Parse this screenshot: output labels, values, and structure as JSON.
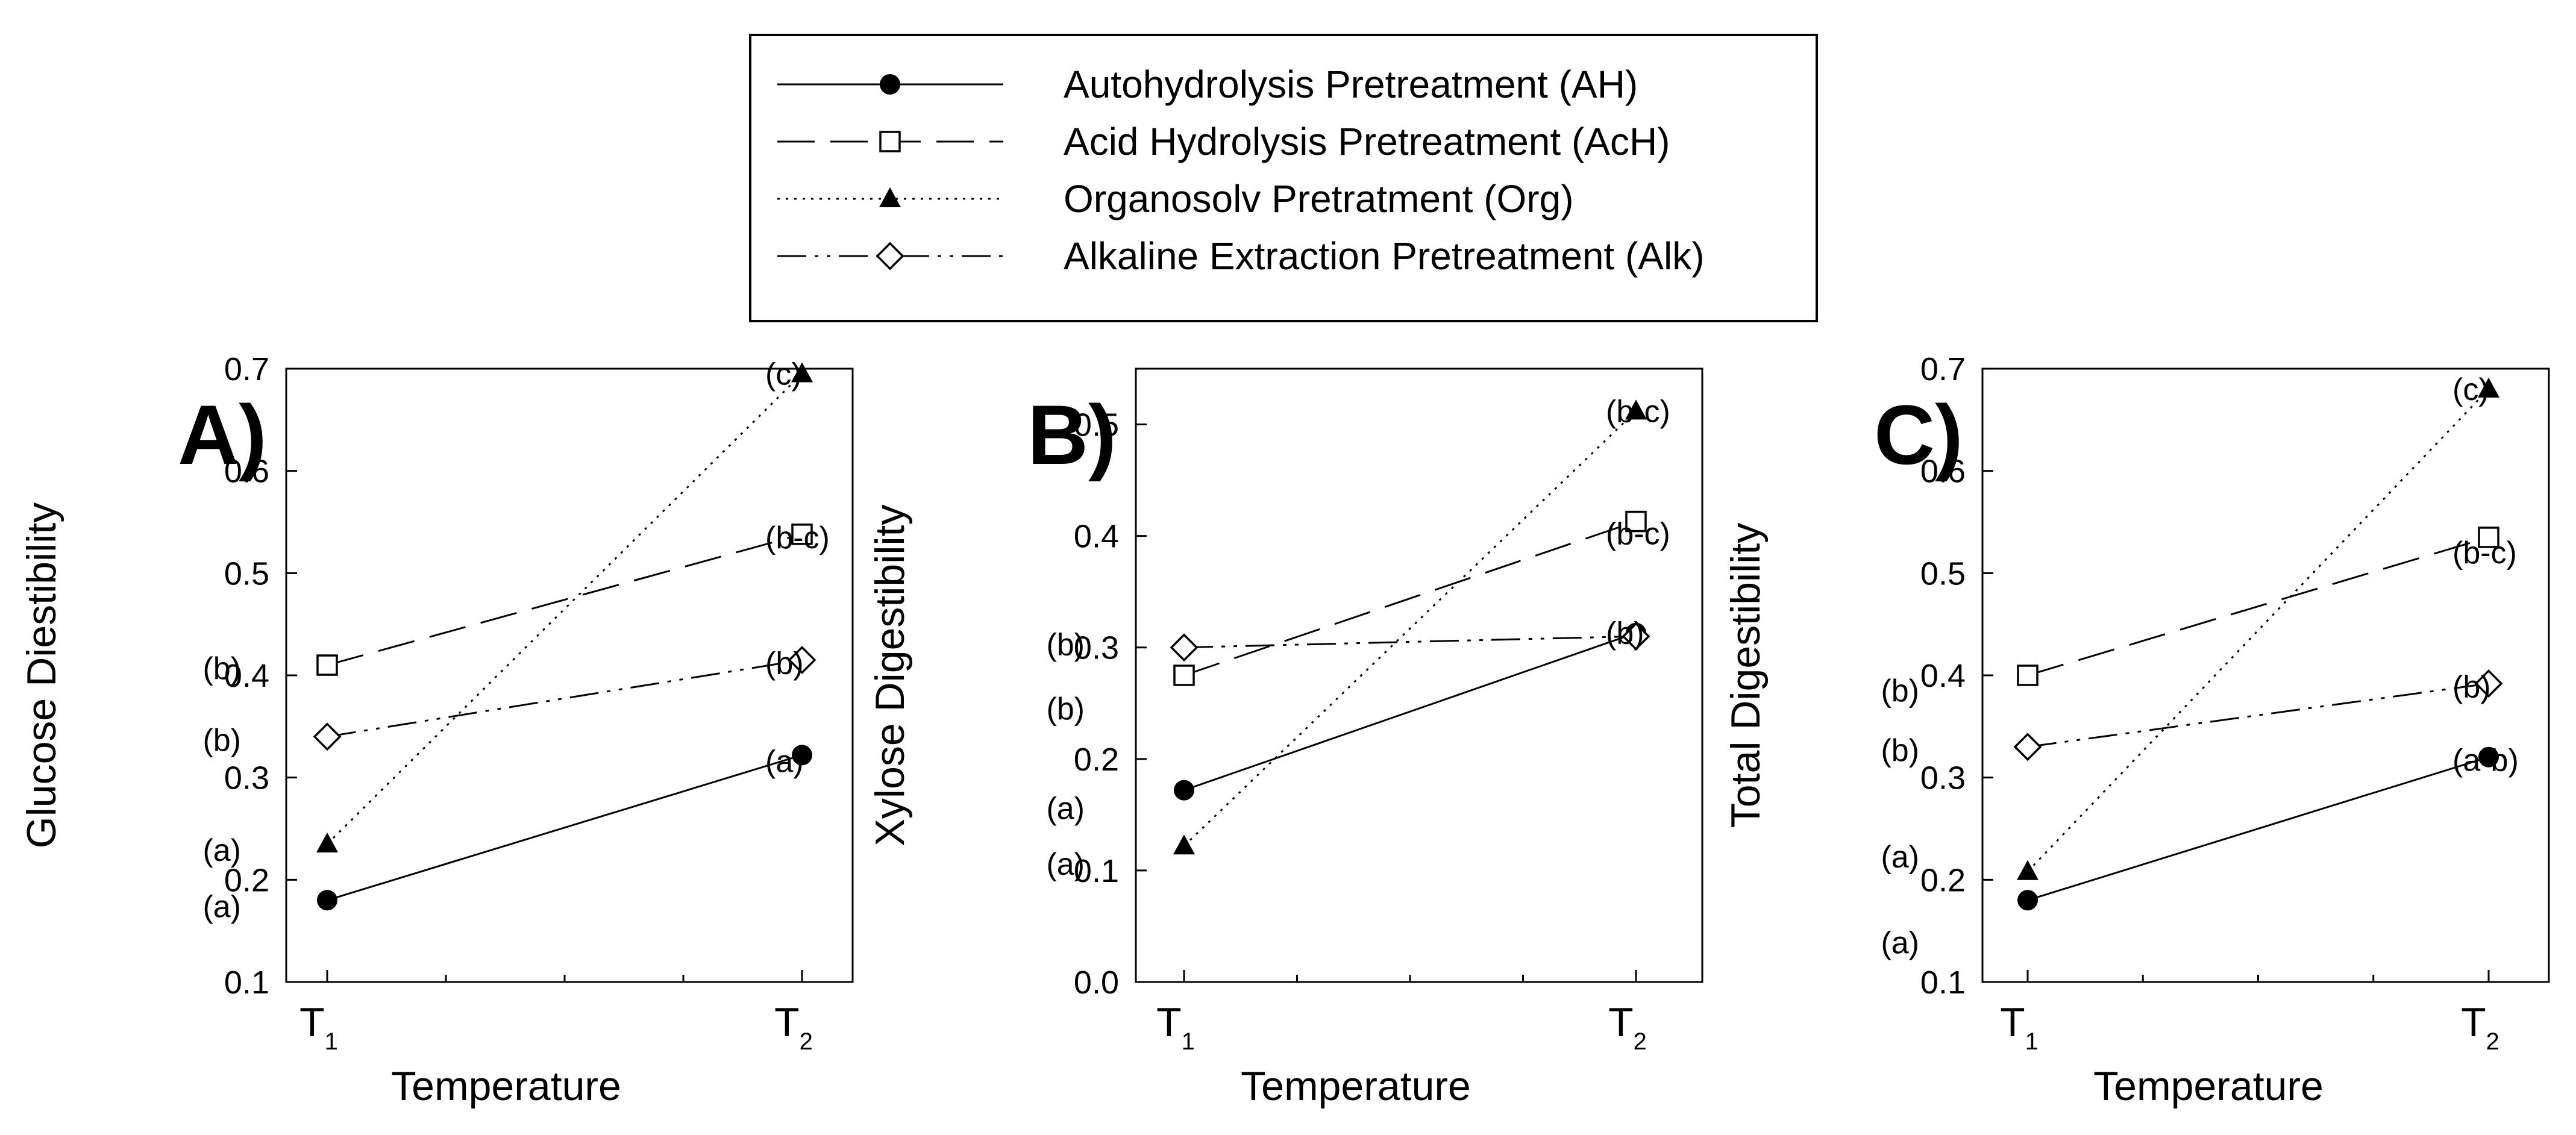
{
  "legend": {
    "entries": [
      {
        "key": "AH",
        "label": "Autohydrolysis Pretreatment (AH)",
        "marker": "filled-circle-icon",
        "dash": "solid"
      },
      {
        "key": "AcH",
        "label": "Acid Hydrolysis Pretreatment (AcH)",
        "marker": "open-square-icon",
        "dash": "long-dash"
      },
      {
        "key": "Org",
        "label": "Organosolv Pretratment (Org)",
        "marker": "filled-triangle-icon",
        "dash": "dotted"
      },
      {
        "key": "Alk",
        "label": "Alkaline Extraction Pretreatment (Alk)",
        "marker": "open-diamond-icon",
        "dash": "dash-dot-dot"
      }
    ]
  },
  "chart_data": [
    {
      "panel": "A)",
      "type": "line",
      "xlabel": "Temperature",
      "ylabel": "Glucose Diestibility",
      "categories": [
        {
          "main": "T",
          "sub": "1"
        },
        {
          "main": "T",
          "sub": "2"
        }
      ],
      "ylim": [
        0.1,
        0.7
      ],
      "yticks": [
        "0.1",
        "0.2",
        "0.3",
        "0.4",
        "0.5",
        "0.6",
        "0.7"
      ],
      "series": [
        {
          "key": "AH",
          "values": [
            0.18,
            0.322
          ],
          "labels": [
            "(a)",
            "(a)"
          ]
        },
        {
          "key": "AcH",
          "values": [
            0.41,
            0.538
          ],
          "labels": [
            "(b)",
            "(b-c)"
          ]
        },
        {
          "key": "Org",
          "values": [
            0.235,
            0.695
          ],
          "labels": [
            "(a)",
            "(c)"
          ]
        },
        {
          "key": "Alk",
          "values": [
            0.34,
            0.415
          ],
          "labels": [
            "(b)",
            "(b)"
          ]
        }
      ]
    },
    {
      "panel": "B)",
      "type": "line",
      "xlabel": "Temperature",
      "ylabel": "Xylose Digestibility",
      "categories": [
        {
          "main": "T",
          "sub": "1"
        },
        {
          "main": "T",
          "sub": "2"
        }
      ],
      "ylim": [
        0.0,
        0.55
      ],
      "yticks": [
        "0.0",
        "0.1",
        "0.2",
        "0.3",
        "0.4",
        "0.5"
      ],
      "series": [
        {
          "key": "AH",
          "values": [
            0.172,
            0.313
          ],
          "labels": [
            "(a)",
            "(b)"
          ]
        },
        {
          "key": "AcH",
          "values": [
            0.275,
            0.413
          ],
          "labels": [
            "(b)",
            "(b-c)"
          ]
        },
        {
          "key": "Org",
          "values": [
            0.122,
            0.512
          ],
          "labels": [
            "(a)",
            "(b-c)"
          ]
        },
        {
          "key": "Alk",
          "values": [
            0.3,
            0.31
          ],
          "labels": [
            "(b)",
            ""
          ]
        }
      ]
    },
    {
      "panel": "C)",
      "type": "line",
      "xlabel": "Temperature",
      "ylabel": "Total Digestibility",
      "categories": [
        {
          "main": "T",
          "sub": "1"
        },
        {
          "main": "T",
          "sub": "2"
        }
      ],
      "ylim": [
        0.1,
        0.7
      ],
      "yticks": [
        "0.1",
        "0.2",
        "0.3",
        "0.4",
        "0.5",
        "0.6",
        "0.7"
      ],
      "series": [
        {
          "key": "AH",
          "values": [
            0.18,
            0.32
          ],
          "labels": [
            "(a)",
            "(a-b)"
          ]
        },
        {
          "key": "AcH",
          "values": [
            0.4,
            0.535
          ],
          "labels": [
            "(b)",
            "(b-c)"
          ]
        },
        {
          "key": "Org",
          "values": [
            0.208,
            0.68
          ],
          "labels": [
            "(a)",
            "(c)"
          ]
        },
        {
          "key": "Alk",
          "values": [
            0.33,
            0.392
          ],
          "labels": [
            "(b)",
            "(b)"
          ]
        }
      ]
    }
  ]
}
